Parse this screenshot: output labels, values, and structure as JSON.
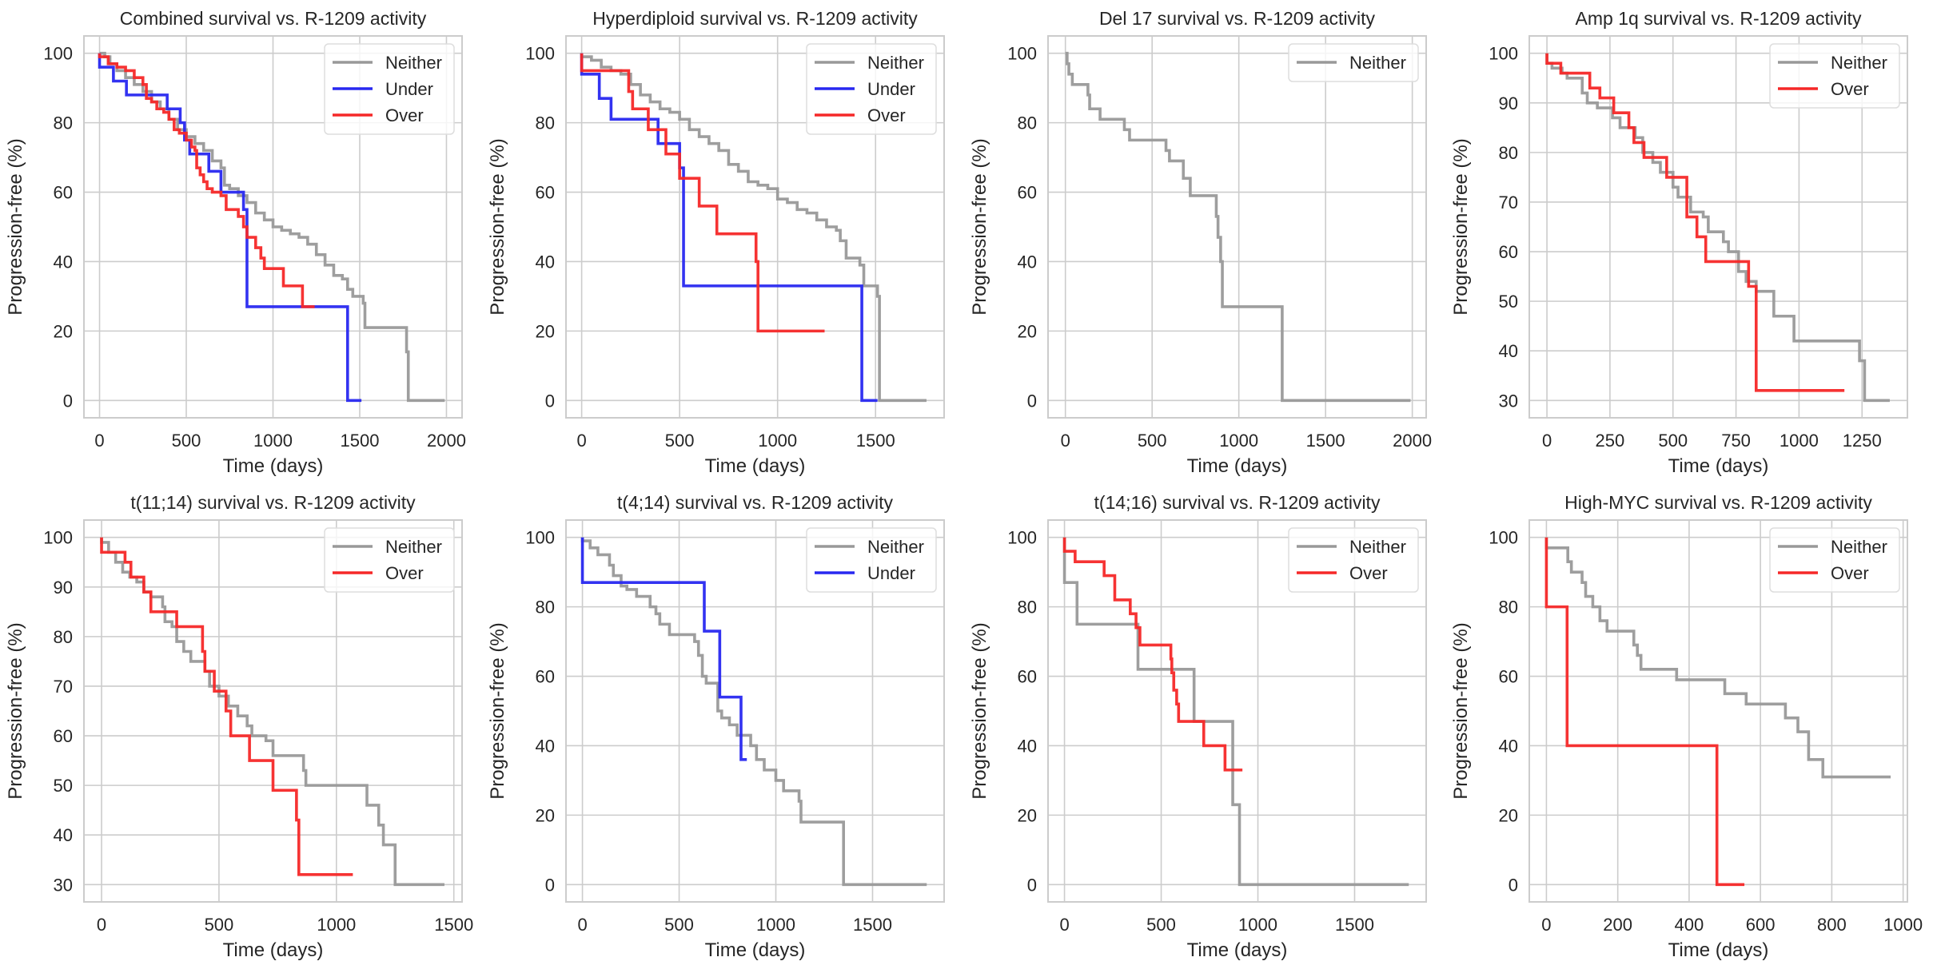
{
  "figure": {
    "legend_labels": {
      "neither": "Neither",
      "under": "Under",
      "over": "Over"
    },
    "colors": {
      "neither": "#999999",
      "under": "#2828f0",
      "over": "#f52828",
      "grid": "#cccccc",
      "text": "#262626"
    }
  },
  "chart_data": [
    {
      "type": "line",
      "step": true,
      "title": "Combined survival vs. R-1209 activity",
      "xlabel": "Time (days)",
      "ylabel": "Progression-free (%)",
      "xlim": [
        -90,
        2090
      ],
      "ylim": [
        -5,
        105
      ],
      "xticks": [
        0,
        500,
        1000,
        1500,
        2000
      ],
      "yticks": [
        0,
        20,
        40,
        60,
        80,
        100
      ],
      "grid": true,
      "legend": "top-right",
      "series": [
        {
          "name": "Neither",
          "key": "neither",
          "x": [
            0,
            30,
            60,
            100,
            150,
            200,
            250,
            300,
            350,
            400,
            450,
            500,
            550,
            600,
            650,
            700,
            720,
            750,
            800,
            850,
            900,
            950,
            1000,
            1050,
            1100,
            1150,
            1200,
            1250,
            1300,
            1350,
            1400,
            1430,
            1460,
            1500,
            1520,
            1530,
            1760,
            1770,
            1780,
            1990
          ],
          "y": [
            100,
            99,
            97,
            95,
            93,
            91,
            89,
            86,
            84,
            81,
            78,
            76,
            74,
            72,
            69,
            67,
            62,
            61,
            59,
            57,
            54,
            52,
            50,
            49,
            48,
            47,
            45,
            42,
            39,
            36,
            35,
            32,
            30,
            30,
            28,
            21,
            21,
            14,
            0,
            0
          ]
        },
        {
          "name": "Under",
          "key": "under",
          "x": [
            0,
            80,
            155,
            390,
            465,
            490,
            520,
            630,
            700,
            830,
            850,
            1430,
            1510
          ],
          "y": [
            96,
            92,
            88,
            84,
            80,
            75,
            71,
            66,
            60,
            55,
            27,
            0,
            0
          ]
        },
        {
          "name": "Over",
          "key": "over",
          "x": [
            0,
            50,
            100,
            150,
            200,
            250,
            270,
            300,
            330,
            370,
            400,
            430,
            460,
            500,
            530,
            550,
            560,
            580,
            600,
            620,
            650,
            700,
            730,
            800,
            830,
            850,
            900,
            930,
            950,
            1060,
            1070,
            1170,
            1180,
            1240
          ],
          "y": [
            99,
            97,
            96,
            95,
            93,
            91,
            87,
            86,
            84,
            83,
            81,
            78,
            77,
            75,
            73,
            72,
            67,
            65,
            63,
            61,
            60,
            59,
            55,
            53,
            50,
            47,
            44,
            41,
            38,
            33,
            33,
            27,
            27,
            27
          ]
        }
      ]
    },
    {
      "type": "line",
      "step": true,
      "title": "Hyperdiploid survival vs. R-1209 activity",
      "xlabel": "Time (days)",
      "ylabel": "Progression-free (%)",
      "xlim": [
        -80,
        1850
      ],
      "ylim": [
        -5,
        105
      ],
      "xticks": [
        0,
        500,
        1000,
        1500
      ],
      "yticks": [
        0,
        20,
        40,
        60,
        80,
        100
      ],
      "grid": true,
      "legend": "top-right",
      "series": [
        {
          "name": "Neither",
          "key": "neither",
          "x": [
            0,
            50,
            100,
            150,
            200,
            250,
            300,
            350,
            400,
            450,
            500,
            550,
            600,
            650,
            700,
            750,
            800,
            850,
            900,
            950,
            1000,
            1050,
            1100,
            1150,
            1200,
            1250,
            1300,
            1320,
            1350,
            1400,
            1420,
            1440,
            1500,
            1510,
            1520,
            1760
          ],
          "y": [
            99,
            98,
            96,
            95,
            94,
            91,
            88,
            86,
            84,
            83,
            81,
            78,
            76,
            74,
            72,
            68,
            66,
            63,
            62,
            61,
            58,
            57,
            55,
            54,
            52,
            50,
            49,
            46,
            41,
            41,
            39,
            33,
            33,
            30,
            0,
            0
          ]
        },
        {
          "name": "Under",
          "key": "under",
          "x": [
            0,
            90,
            150,
            390,
            500,
            520,
            1430,
            1510
          ],
          "y": [
            94,
            87,
            81,
            74,
            67,
            33,
            0,
            0
          ]
        },
        {
          "name": "Over",
          "key": "over",
          "x": [
            0,
            240,
            260,
            340,
            430,
            500,
            600,
            690,
            890,
            900,
            1240
          ],
          "y": [
            95,
            89,
            84,
            78,
            71,
            64,
            56,
            48,
            40,
            20,
            20
          ]
        }
      ]
    },
    {
      "type": "line",
      "step": true,
      "title": "Del 17 survival vs. R-1209 activity",
      "xlabel": "Time (days)",
      "ylabel": "Progression-free (%)",
      "xlim": [
        -100,
        2080
      ],
      "ylim": [
        -5,
        105
      ],
      "xticks": [
        0,
        500,
        1000,
        1500,
        2000
      ],
      "yticks": [
        0,
        20,
        40,
        60,
        80,
        100
      ],
      "grid": true,
      "legend": "top-right",
      "series": [
        {
          "name": "Neither",
          "key": "neither",
          "x": [
            0,
            10,
            20,
            40,
            130,
            140,
            200,
            340,
            370,
            580,
            600,
            680,
            720,
            870,
            880,
            895,
            905,
            915,
            1250,
            1990
          ],
          "y": [
            100,
            97,
            94,
            91,
            88,
            84,
            81,
            78,
            75,
            72,
            69,
            64,
            59,
            53,
            47,
            40,
            27,
            27,
            0,
            0
          ]
        }
      ]
    },
    {
      "type": "line",
      "step": true,
      "title": "Amp 1q survival vs. R-1209 activity",
      "xlabel": "Time (days)",
      "ylabel": "Progression-free (%)",
      "xlim": [
        -70,
        1430
      ],
      "ylim": [
        26.5,
        103.5
      ],
      "xticks": [
        0,
        250,
        500,
        750,
        1000,
        1250
      ],
      "yticks": [
        30,
        40,
        50,
        60,
        70,
        80,
        90,
        100
      ],
      "grid": true,
      "legend": "top-right",
      "series": [
        {
          "name": "Neither",
          "key": "neither",
          "x": [
            0,
            20,
            60,
            80,
            140,
            160,
            200,
            260,
            290,
            350,
            380,
            420,
            450,
            500,
            520,
            570,
            620,
            640,
            700,
            720,
            760,
            790,
            830,
            870,
            900,
            980,
            1240,
            1260,
            1360
          ],
          "y": [
            98,
            97,
            96,
            95,
            92,
            90,
            89,
            87,
            85,
            83,
            80,
            78,
            76,
            73,
            71,
            68,
            67,
            64,
            62,
            60,
            56,
            54,
            52,
            52,
            47,
            42,
            38,
            30,
            30
          ]
        },
        {
          "name": "Over",
          "key": "over",
          "x": [
            0,
            55,
            170,
            210,
            265,
            325,
            345,
            385,
            475,
            555,
            595,
            630,
            800,
            830,
            1180
          ],
          "y": [
            98,
            96,
            93,
            91,
            88,
            85,
            82,
            79,
            75,
            67,
            63,
            58,
            53,
            32,
            32
          ]
        }
      ]
    },
    {
      "type": "line",
      "step": true,
      "title": "t(11;14) survival vs. R-1209 activity",
      "xlabel": "Time (days)",
      "ylabel": "Progression-free (%)",
      "xlim": [
        -75,
        1535
      ],
      "ylim": [
        26.5,
        103.5
      ],
      "xticks": [
        0,
        500,
        1000,
        1500
      ],
      "yticks": [
        30,
        40,
        50,
        60,
        70,
        80,
        90,
        100
      ],
      "grid": true,
      "legend": "top-right",
      "series": [
        {
          "name": "Neither",
          "key": "neither",
          "x": [
            0,
            30,
            60,
            90,
            120,
            150,
            180,
            210,
            260,
            270,
            300,
            320,
            350,
            380,
            440,
            460,
            500,
            540,
            580,
            620,
            640,
            700,
            730,
            860,
            870,
            1130,
            1180,
            1200,
            1250,
            1460
          ],
          "y": [
            99,
            97,
            95,
            93,
            92,
            91,
            89,
            88,
            86,
            83,
            82,
            79,
            77,
            75,
            73,
            70,
            68,
            66,
            64,
            62,
            60,
            59,
            56,
            53,
            50,
            46,
            42,
            38,
            30,
            30
          ]
        },
        {
          "name": "Over",
          "key": "over",
          "x": [
            0,
            100,
            125,
            180,
            210,
            320,
            430,
            440,
            480,
            530,
            550,
            630,
            730,
            830,
            840,
            1070
          ],
          "y": [
            97,
            95,
            92,
            89,
            85,
            82,
            77,
            73,
            69,
            65,
            60,
            55,
            49,
            43,
            32,
            32
          ]
        }
      ]
    },
    {
      "type": "line",
      "step": true,
      "title": "t(4;14) survival vs. R-1209 activity",
      "xlabel": "Time (days)",
      "ylabel": "Progression-free (%)",
      "xlim": [
        -85,
        1870
      ],
      "ylim": [
        -5,
        105
      ],
      "xticks": [
        0,
        500,
        1000,
        1500
      ],
      "yticks": [
        0,
        20,
        40,
        60,
        80,
        100
      ],
      "grid": true,
      "legend": "top-right",
      "series": [
        {
          "name": "Neither",
          "key": "neither",
          "x": [
            0,
            40,
            80,
            140,
            160,
            200,
            230,
            280,
            350,
            380,
            400,
            450,
            580,
            600,
            620,
            640,
            700,
            720,
            760,
            800,
            870,
            900,
            940,
            1000,
            1040,
            1120,
            1130,
            1350,
            1780
          ],
          "y": [
            99,
            97,
            95,
            92,
            89,
            86,
            85,
            83,
            80,
            78,
            75,
            72,
            70,
            66,
            60,
            58,
            50,
            48,
            46,
            43,
            40,
            36,
            33,
            30,
            27,
            24,
            18,
            0,
            0
          ]
        },
        {
          "name": "Under",
          "key": "under",
          "x": [
            0,
            630,
            710,
            820,
            850
          ],
          "y": [
            87,
            73,
            54,
            36,
            36
          ]
        }
      ]
    },
    {
      "type": "line",
      "step": true,
      "title": "t(14;16) survival vs. R-1209 activity",
      "xlabel": "Time (days)",
      "ylabel": "Progression-free (%)",
      "xlim": [
        -85,
        1870
      ],
      "ylim": [
        -5,
        105
      ],
      "xticks": [
        0,
        500,
        1000,
        1500
      ],
      "yticks": [
        0,
        20,
        40,
        60,
        80,
        100
      ],
      "grid": true,
      "legend": "top-right",
      "series": [
        {
          "name": "Neither",
          "key": "neither",
          "x": [
            0,
            65,
            380,
            670,
            870,
            905,
            1780
          ],
          "y": [
            87,
            75,
            62,
            47,
            23,
            0,
            0
          ]
        },
        {
          "name": "Over",
          "key": "over",
          "x": [
            0,
            55,
            205,
            260,
            340,
            370,
            390,
            550,
            555,
            565,
            580,
            590,
            720,
            830,
            920
          ],
          "y": [
            96,
            93,
            89,
            82,
            78,
            74,
            69,
            65,
            61,
            56,
            52,
            47,
            40,
            33,
            33
          ]
        }
      ]
    },
    {
      "type": "line",
      "step": true,
      "title": "High-MYC survival vs. R-1209 activity",
      "xlabel": "Time (days)",
      "ylabel": "Progression-free (%)",
      "xlim": [
        -48,
        1012
      ],
      "ylim": [
        -5,
        105
      ],
      "xticks": [
        0,
        200,
        400,
        600,
        800,
        1000
      ],
      "yticks": [
        0,
        20,
        40,
        60,
        80,
        100
      ],
      "grid": true,
      "legend": "top-right",
      "series": [
        {
          "name": "Neither",
          "key": "neither",
          "x": [
            0,
            60,
            70,
            100,
            110,
            130,
            150,
            170,
            245,
            255,
            265,
            365,
            500,
            560,
            670,
            705,
            735,
            775,
            965
          ],
          "y": [
            97,
            93,
            90,
            87,
            83,
            80,
            76,
            73,
            69,
            66,
            62,
            59,
            55,
            52,
            48,
            44,
            36,
            31,
            31
          ]
        },
        {
          "name": "Over",
          "key": "over",
          "x": [
            0,
            58,
            478,
            555
          ],
          "y": [
            80,
            40,
            0,
            0
          ]
        }
      ]
    }
  ]
}
